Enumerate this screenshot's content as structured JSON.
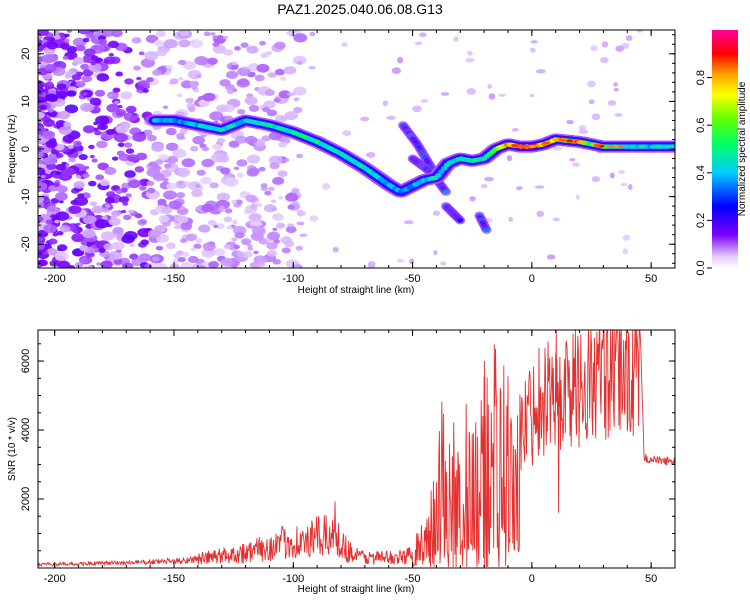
{
  "figure": {
    "title": "PAZ1.2025.040.06.08.G13"
  },
  "chart_data": [
    {
      "type": "heatmap",
      "xlabel": "Height of straight line (km)",
      "ylabel": "Frequency (Hz)",
      "xlim": [
        -207,
        60
      ],
      "ylim": [
        -25,
        25
      ],
      "xticks": [
        -200,
        -150,
        -100,
        -50,
        0,
        50
      ],
      "yticks": [
        -20,
        -10,
        0,
        10,
        20
      ],
      "colorbar": {
        "label": "Normalized spectral amplitude",
        "range": [
          0,
          1
        ],
        "ticks": [
          0.0,
          0.2,
          0.4,
          0.6,
          0.8
        ],
        "tick_labels": [
          "0.0",
          "0.2",
          "0.4",
          "0.6",
          "0.8"
        ],
        "colormap": "rainbow (white-violet-blue-cyan-green-yellow-orange-red-magenta)"
      },
      "ridge": {
        "x": [
          -158,
          -150,
          -140,
          -130,
          -120,
          -110,
          -100,
          -90,
          -80,
          -70,
          -60,
          -55,
          -45,
          -40,
          -35,
          -30,
          -25,
          -20,
          -15,
          -10,
          -5,
          0,
          5,
          10,
          20,
          30,
          40,
          50,
          60
        ],
        "y": [
          6,
          6,
          5,
          4,
          6,
          5,
          3.5,
          1.5,
          -1,
          -4,
          -7.5,
          -9,
          -6.5,
          -6,
          -3,
          -2,
          -2.5,
          -2,
          0,
          1,
          0.5,
          0.5,
          1,
          2,
          1.5,
          0.5,
          0.5,
          0.5,
          0.5
        ],
        "amplitude": [
          0.4,
          0.35,
          0.4,
          0.45,
          0.4,
          0.45,
          0.45,
          0.5,
          0.4,
          0.45,
          0.4,
          0.35,
          0.4,
          0.45,
          0.4,
          0.45,
          0.45,
          0.5,
          0.6,
          0.8,
          0.85,
          0.9,
          0.8,
          0.75,
          0.6,
          0.55,
          0.45,
          0.4,
          0.4
        ]
      },
      "secondary_features": [
        {
          "x": [
            -54,
            -48,
            -42
          ],
          "y": [
            5,
            1,
            -4
          ]
        },
        {
          "x": [
            -50,
            -42,
            -36
          ],
          "y": [
            -2,
            -5,
            -9
          ]
        },
        {
          "x": [
            -36,
            -30
          ],
          "y": [
            -12,
            -15
          ]
        },
        {
          "x": [
            -22,
            -19
          ],
          "y": [
            -14,
            -17
          ]
        }
      ]
    },
    {
      "type": "line",
      "xlabel": "Height of straight line (km)",
      "ylabel": "SNR (10 * v/v)",
      "xlim": [
        -207,
        60
      ],
      "ylim": [
        0,
        6900
      ],
      "xticks": [
        -200,
        -150,
        -100,
        -50,
        0,
        50
      ],
      "yticks": [
        2000,
        4000,
        6000
      ],
      "color": "#e53030",
      "series": [
        {
          "x": [
            -207,
            -190,
            -170,
            -150,
            -140,
            -130,
            -120,
            -110,
            -100,
            -95,
            -90,
            -85,
            -82,
            -80,
            -75,
            -70,
            -60,
            -55,
            -50,
            -48,
            -45,
            -40,
            -38,
            -35,
            -32,
            -30,
            -28,
            -25,
            -22,
            -20,
            -18,
            -15,
            -12,
            -10,
            -8,
            -5,
            -2,
            0,
            2,
            5,
            8,
            10,
            12,
            15,
            20,
            25,
            30,
            35,
            40,
            44,
            46,
            47,
            50,
            55,
            60
          ],
          "y": [
            100,
            120,
            150,
            200,
            260,
            350,
            450,
            600,
            800,
            700,
            900,
            900,
            1200,
            700,
            400,
            300,
            300,
            300,
            400,
            600,
            900,
            1300,
            2600,
            1600,
            2300,
            1800,
            3300,
            1800,
            2200,
            2800,
            2900,
            3000,
            3500,
            4200,
            3000,
            3800,
            4400,
            4500,
            4900,
            5000,
            5200,
            4800,
            5000,
            5200,
            5300,
            5400,
            5550,
            5600,
            5650,
            5700,
            5600,
            3200,
            3150,
            3100,
            3100
          ]
        }
      ],
      "spikes": [
        {
          "x": -20,
          "y": 6000
        },
        {
          "x": 10,
          "y": 6900
        },
        {
          "x": 11,
          "y": 1600
        }
      ]
    }
  ]
}
